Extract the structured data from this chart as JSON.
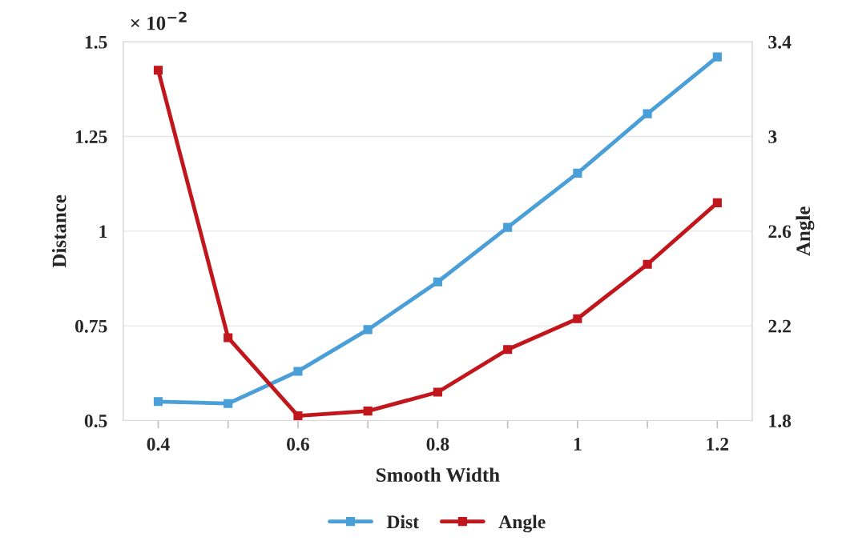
{
  "chart_data": {
    "type": "line",
    "xlabel": "Smooth Width",
    "ylabel": "Distance",
    "y2label": "Angle",
    "annotations": [
      "× 10$^{−2}$"
    ],
    "x": [
      0.4,
      0.5,
      0.6,
      0.7,
      0.8,
      0.9,
      1.0,
      1.1,
      1.2
    ],
    "series": [
      {
        "name": "Dist",
        "color": "#4a9fd8",
        "values": [
          0.55,
          0.545,
          0.63,
          0.74,
          0.866,
          1.01,
          1.153,
          1.31,
          1.46
        ]
      },
      {
        "name": "Angle",
        "color": "#c0161c",
        "axis": "y2",
        "values": [
          3.28,
          2.15,
          1.82,
          1.84,
          1.92,
          2.1,
          2.23,
          2.46,
          2.72
        ]
      }
    ],
    "xlim": [
      0.35,
      1.25
    ],
    "ylim": [
      0.5,
      1.5
    ],
    "y2lim": [
      1.8,
      3.4
    ],
    "xticks": [
      {
        "value": 0.4,
        "label": "0.4"
      },
      {
        "value": 0.5,
        "label": null
      },
      {
        "value": 0.6,
        "label": "0.6"
      },
      {
        "value": 0.7,
        "label": null
      },
      {
        "value": 0.8,
        "label": "0.8"
      },
      {
        "value": 0.9,
        "label": null
      },
      {
        "value": 1,
        "label": "1"
      },
      {
        "value": 1.1,
        "label": null
      },
      {
        "value": 1.2,
        "label": "1.2"
      }
    ],
    "yticks": [
      0.5,
      0.75,
      1,
      1.25,
      1.5
    ],
    "y2ticks": [
      1.8,
      2.2,
      2.6,
      3,
      3.4
    ],
    "grid": "y",
    "legend": "bottom",
    "marker": "square",
    "line_style": "solid"
  }
}
